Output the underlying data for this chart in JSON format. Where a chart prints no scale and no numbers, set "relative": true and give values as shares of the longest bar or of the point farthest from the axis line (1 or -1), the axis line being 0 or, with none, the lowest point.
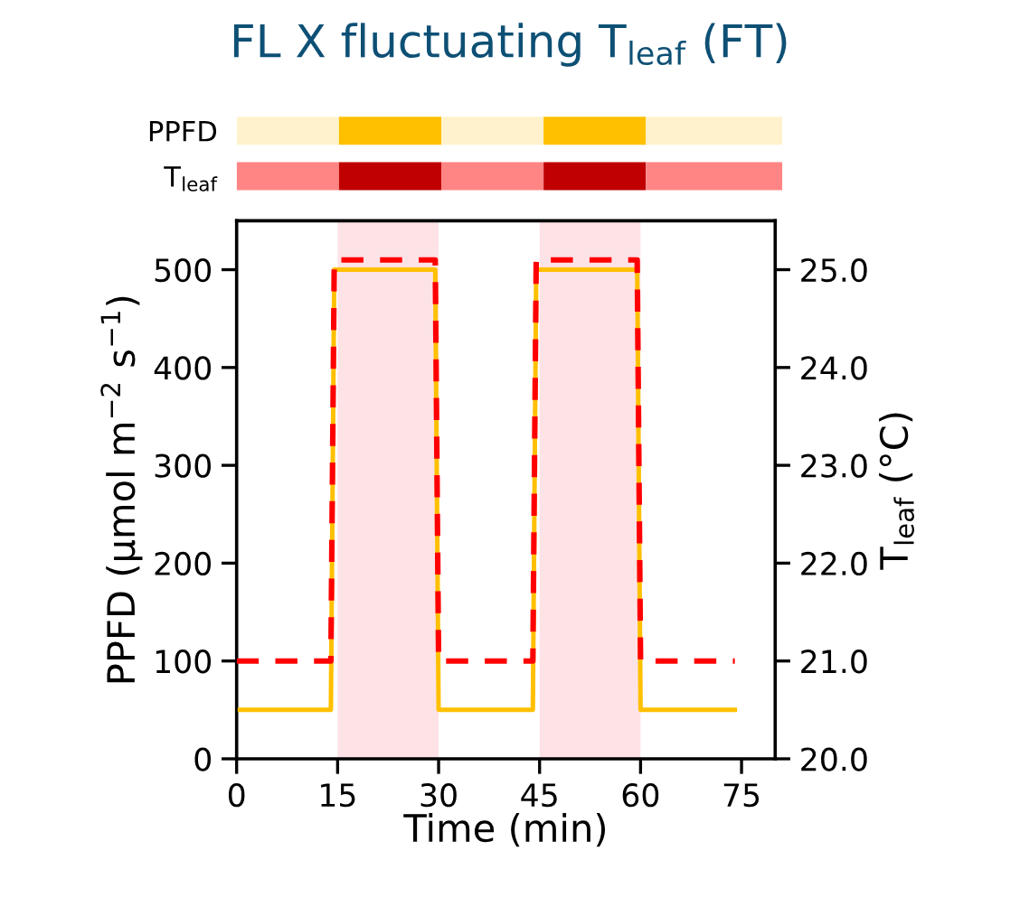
{
  "chart_data": [
    {
      "type": "bar",
      "orientation": "horizontal",
      "stacked": true,
      "title": "FL X fluctuating T$_{leaf}$ (FT)",
      "categories": [
        "PPFD",
        "T$_{leaf}$"
      ],
      "relative": true,
      "tick_labels": "y",
      "series": [
        {
          "values": [
            0.1875,
            0.1875
          ],
          "colors": [
            "#fff2cc",
            "#ff8585"
          ]
        },
        {
          "values": [
            0.1875,
            0.1875
          ],
          "colors": [
            "#ffc000",
            "#c00000"
          ]
        },
        {
          "values": [
            0.1875,
            0.1875
          ],
          "colors": [
            "#fff2cc",
            "#ff8585"
          ]
        },
        {
          "values": [
            0.1875,
            0.1875
          ],
          "colors": [
            "#ffc000",
            "#c00000"
          ]
        },
        {
          "values": [
            0.25,
            0.25
          ],
          "colors": [
            "#fff2cc",
            "#ff8585"
          ]
        }
      ]
    },
    {
      "type": "line",
      "xlabel": "Time (min)",
      "ylabel": "PPFD (µmol m$^{−2}$ s$^{−1}$)",
      "y2label": "T$_{leaf}$ (°C)",
      "xlim": [
        0,
        80
      ],
      "xticks": [
        0,
        15,
        30,
        45,
        60,
        75
      ],
      "ylim": [
        0,
        550
      ],
      "yticks": [
        0,
        100,
        200,
        300,
        400,
        500
      ],
      "y2lim": [
        20,
        25.5
      ],
      "y2ticks": [
        {
          "value": 20,
          "label": "20.0"
        },
        {
          "value": 21,
          "label": "21.0"
        },
        {
          "value": 22,
          "label": "22.0"
        },
        {
          "value": 23,
          "label": "23.0"
        },
        {
          "value": 24,
          "label": "24.0"
        },
        {
          "value": 25,
          "label": "25.0"
        }
      ],
      "bands": [
        {
          "axis": "x",
          "from": 15,
          "to": 30,
          "color": "#fde3e6"
        },
        {
          "axis": "x",
          "from": 45,
          "to": 60,
          "color": "#fde3e6"
        }
      ],
      "series": [
        {
          "axis": "y",
          "color": "#ffc000",
          "line_style": "solid",
          "x": [
            0,
            14,
            14.5,
            29.5,
            30,
            44,
            44.5,
            59.5,
            60,
            74
          ],
          "values": [
            50,
            50,
            500,
            500,
            50,
            50,
            500,
            500,
            50,
            50
          ]
        },
        {
          "axis": "y2",
          "color": "#ff0000",
          "line_style": "dashed",
          "x": [
            0,
            14,
            14.5,
            29.5,
            30,
            44,
            44.5,
            59.5,
            60,
            74
          ],
          "values": [
            21.0,
            21.0,
            25.1,
            25.1,
            21.0,
            21.0,
            25.1,
            25.1,
            21.0,
            21.0
          ]
        }
      ]
    }
  ]
}
